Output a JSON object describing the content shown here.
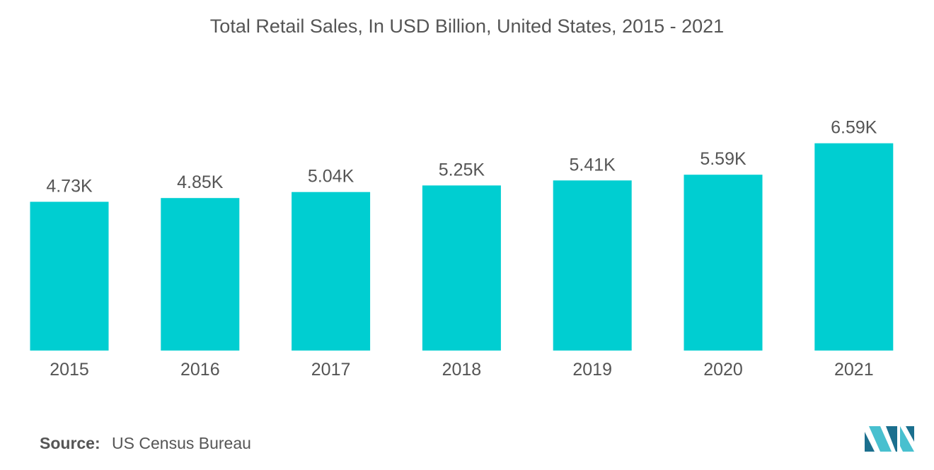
{
  "title": "Total Retail Sales, In USD Billion, United States, 2015 - 2021",
  "source": {
    "label": "Source:",
    "text": "US Census Bureau"
  },
  "colors": {
    "bar": "#00CED1",
    "text": "#555555",
    "logo_dark": "#1B6F8E",
    "logo_light": "#48C0CF"
  },
  "logo": {
    "icon": "mordor-intelligence-logo-icon"
  },
  "chart_data": {
    "type": "bar",
    "title": "Total Retail Sales, In USD Billion, United States, 2015 - 2021",
    "categories": [
      "2015",
      "2016",
      "2017",
      "2018",
      "2019",
      "2020",
      "2021"
    ],
    "values": [
      4.73,
      4.85,
      5.04,
      5.25,
      5.41,
      5.59,
      6.59
    ],
    "value_labels": [
      "4.73K",
      "4.85K",
      "5.04K",
      "5.25K",
      "5.41K",
      "5.59K",
      "6.59K"
    ],
    "xlabel": "",
    "ylabel": "",
    "ylim": [
      0,
      7
    ],
    "grid": false,
    "legend": "none"
  }
}
